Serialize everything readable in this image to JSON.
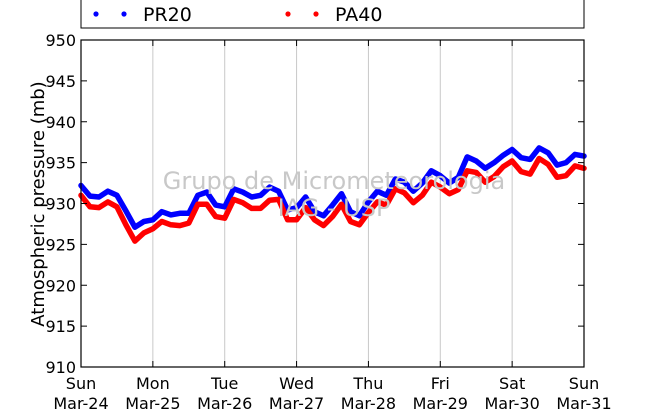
{
  "chart_data": {
    "type": "line",
    "ylabel": "Atmospheric pressure (mb)",
    "ylim": [
      910,
      950
    ],
    "yticks": [
      "910",
      "915",
      "920",
      "925",
      "930",
      "935",
      "940",
      "945",
      "950"
    ],
    "xlim": [
      0,
      7
    ],
    "xticks": [
      {
        "day": "Sun",
        "date": "Mar-24"
      },
      {
        "day": "Mon",
        "date": "Mar-25"
      },
      {
        "day": "Tue",
        "date": "Mar-26"
      },
      {
        "day": "Wed",
        "date": "Mar-27"
      },
      {
        "day": "Thu",
        "date": "Mar-28"
      },
      {
        "day": "Fri",
        "date": "Mar-29"
      },
      {
        "day": "Sat",
        "date": "Mar-30"
      },
      {
        "day": "Sun",
        "date": "Mar-31"
      }
    ],
    "grid": "vertical",
    "legend_position": "top",
    "watermark": [
      "Grupo de Micrometeorologia",
      "IAG - USP"
    ],
    "series": [
      {
        "name": "PR20",
        "color": "#0000ff",
        "x": [
          0,
          0.125,
          0.25,
          0.375,
          0.5,
          0.625,
          0.75,
          0.875,
          1.0,
          1.125,
          1.25,
          1.375,
          1.5,
          1.625,
          1.75,
          1.875,
          2.0,
          2.125,
          2.25,
          2.375,
          2.5,
          2.625,
          2.75,
          2.875,
          3.0,
          3.125,
          3.25,
          3.375,
          3.5,
          3.625,
          3.75,
          3.875,
          4.0,
          4.125,
          4.25,
          4.375,
          4.5,
          4.625,
          4.75,
          4.875,
          5.0,
          5.125,
          5.25,
          5.375,
          5.5,
          5.625,
          5.75,
          5.875,
          6.0,
          6.125,
          6.25,
          6.375,
          6.5,
          6.625,
          6.75,
          6.875,
          7.0
        ],
        "y": [
          932.2,
          930.9,
          930.8,
          931.5,
          931.0,
          929.1,
          927.1,
          927.8,
          928.0,
          929.0,
          928.6,
          928.8,
          928.8,
          931.0,
          931.4,
          929.8,
          929.6,
          931.8,
          931.4,
          930.8,
          931.0,
          932.0,
          931.5,
          929.2,
          929.5,
          930.8,
          929.0,
          928.5,
          929.8,
          931.2,
          929.0,
          928.5,
          930.2,
          931.5,
          931.0,
          933.0,
          932.6,
          931.5,
          932.5,
          934.0,
          933.4,
          932.5,
          933.2,
          935.7,
          935.2,
          934.3,
          935.0,
          935.9,
          936.6,
          935.6,
          935.4,
          936.8,
          936.2,
          934.7,
          935.0,
          936.0,
          935.8
        ]
      },
      {
        "name": "PA40",
        "color": "#ff0000",
        "x": [
          0,
          0.125,
          0.25,
          0.375,
          0.5,
          0.625,
          0.75,
          0.875,
          1.0,
          1.125,
          1.25,
          1.375,
          1.5,
          1.625,
          1.75,
          1.875,
          2.0,
          2.125,
          2.25,
          2.375,
          2.5,
          2.625,
          2.75,
          2.875,
          3.0,
          3.125,
          3.25,
          3.375,
          3.5,
          3.625,
          3.75,
          3.875,
          4.0,
          4.125,
          4.25,
          4.375,
          4.5,
          4.625,
          4.75,
          4.875,
          5.0,
          5.125,
          5.25,
          5.375,
          5.5,
          5.625,
          5.75,
          5.875,
          6.0,
          6.125,
          6.25,
          6.375,
          6.5,
          6.625,
          6.75,
          6.875,
          7.0
        ],
        "y": [
          931.0,
          929.6,
          929.5,
          930.2,
          929.6,
          927.4,
          925.4,
          926.4,
          926.9,
          927.8,
          927.4,
          927.3,
          927.6,
          929.9,
          929.9,
          928.4,
          928.2,
          930.5,
          930.1,
          929.4,
          929.4,
          930.4,
          930.5,
          928.0,
          928.0,
          929.5,
          928.0,
          927.3,
          928.4,
          929.9,
          927.8,
          927.4,
          928.9,
          930.2,
          929.8,
          931.8,
          931.3,
          930.1,
          931.0,
          932.6,
          932.0,
          931.2,
          931.7,
          934.0,
          933.8,
          932.6,
          933.3,
          934.5,
          935.2,
          933.9,
          933.6,
          935.5,
          934.8,
          933.2,
          933.4,
          934.6,
          934.3
        ]
      }
    ]
  }
}
